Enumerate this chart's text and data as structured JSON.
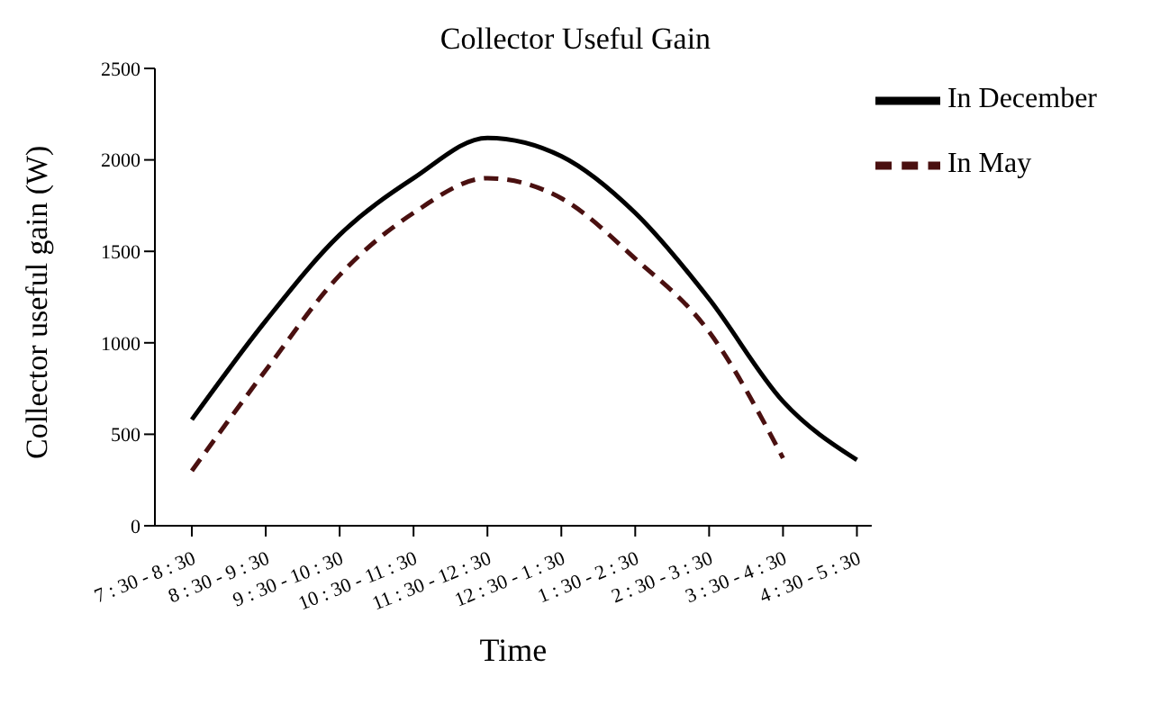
{
  "chart_data": {
    "type": "line",
    "title": "Collector Useful Gain",
    "xlabel": "Time",
    "ylabel": "Collector useful gain (W)",
    "categories": [
      "7 : 30 - 8 : 30",
      "8 : 30 - 9 : 30",
      "9 : 30 - 10 : 30",
      "10 : 30 - 11 : 30",
      "11 : 30 - 12 : 30",
      "12 : 30 - 1 : 30",
      "1 : 30 - 2 : 30",
      "2 : 30 - 3 : 30",
      "3 : 30 - 4 : 30",
      "4 : 30 - 5 : 30"
    ],
    "series": [
      {
        "name": "In December",
        "color": "#000000",
        "line_style": "solid",
        "values": [
          580,
          1120,
          1590,
          1900,
          2120,
          2020,
          1710,
          1240,
          680,
          360
        ]
      },
      {
        "name": "In May",
        "color": "#4a1010",
        "line_style": "dashed",
        "values": [
          300,
          850,
          1370,
          1710,
          1900,
          1790,
          1460,
          1060,
          370,
          null
        ]
      }
    ],
    "ylim": [
      0,
      2500
    ],
    "yticks": [
      0,
      500,
      1000,
      1500,
      2000,
      2500
    ],
    "grid": false,
    "legend": "top right",
    "marker": "none"
  }
}
